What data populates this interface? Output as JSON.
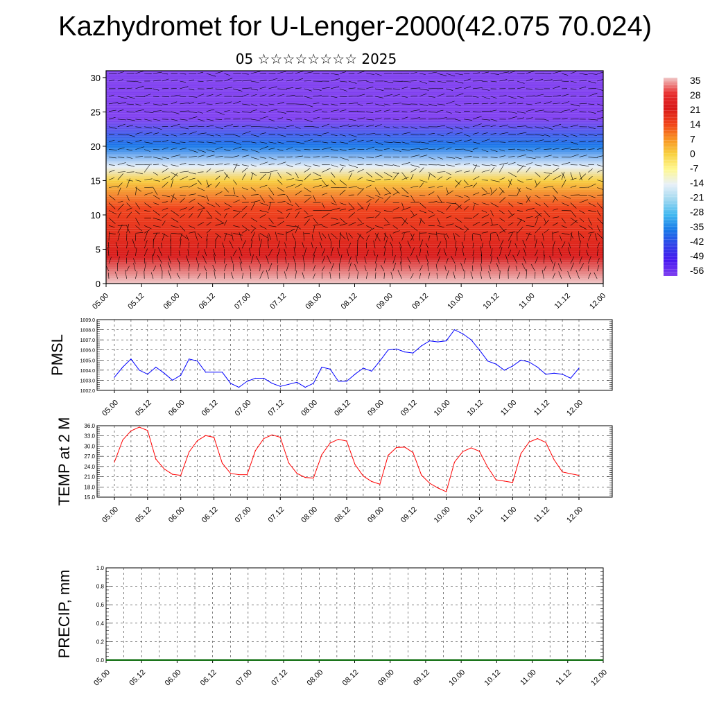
{
  "title": "Kazhydromet for U-Lenger-2000(42.075 70.024)",
  "subtitle": "05 ☆☆☆☆☆☆☆☆ 2025",
  "colors": {
    "pmsl_line": "#0000ff",
    "temp_line": "#ff0000",
    "precip_line": "#006400",
    "grid": "#000000",
    "vectors": "#000000"
  },
  "chart_data": [
    {
      "id": "cross_section",
      "type": "heatmap",
      "description_of_fill": "temperature colour field with black wind vectors",
      "x_tick_labels": [
        "05.00",
        "05.12",
        "06.00",
        "06.12",
        "07.00",
        "07.12",
        "08.00",
        "08.12",
        "09.00",
        "09.12",
        "10.00",
        "10.12",
        "11.00",
        "11.12",
        "12.00"
      ],
      "y_ticks": [
        0,
        5,
        10,
        15,
        20,
        25,
        30
      ],
      "ylim": [
        0,
        31
      ],
      "colorbar": {
        "labels": [
          "35",
          "28",
          "21",
          "14",
          "7",
          "0",
          "-7",
          "-14",
          "-21",
          "-28",
          "-35",
          "-42",
          "-49",
          "-56"
        ],
        "stops": [
          "#f0c8c8",
          "#e83030",
          "#d81818",
          "#f04018",
          "#f89020",
          "#f8d040",
          "#fff890",
          "#e8f0f8",
          "#a0d8f0",
          "#40b8f0",
          "#1878e8",
          "#3040e8",
          "#4818f0",
          "#8040f0"
        ]
      },
      "temp_profile": [
        {
          "level": 0,
          "value": 35
        },
        {
          "level": 4,
          "value": 22
        },
        {
          "level": 11,
          "value": 14
        },
        {
          "level": 15,
          "value": 0
        },
        {
          "level": 17,
          "value": -14
        },
        {
          "level": 20,
          "value": -30
        },
        {
          "level": 24,
          "value": -50
        },
        {
          "level": 31,
          "value": -58
        }
      ]
    },
    {
      "id": "pmsl",
      "type": "line",
      "ylabel": "PMSL",
      "ylim": [
        1002.0,
        1009.0
      ],
      "y_tick_labels": [
        "1009.0",
        "1008.0",
        "1007.0",
        "1006.0",
        "1005.0",
        "1004.0",
        "1003.0",
        "1002.0"
      ],
      "x_tick_labels": [
        "05.00",
        "05.12",
        "06.00",
        "06.12",
        "07.00",
        "07.12",
        "08.00",
        "08.12",
        "09.00",
        "09.12",
        "10.00",
        "10.12",
        "11.00",
        "11.12",
        "12.00"
      ],
      "series": [
        {
          "values": [
            1003.3,
            1004.3,
            1005.1,
            1004.0,
            1003.6,
            1004.3,
            1003.7,
            1003.0,
            1003.5,
            1005.1,
            1004.9,
            1003.8,
            1003.8,
            1003.8,
            1002.7,
            1002.3,
            1002.9,
            1003.2,
            1003.2,
            1002.7,
            1002.4,
            1002.6,
            1002.8,
            1002.3,
            1002.7,
            1004.3,
            1004.1,
            1002.9,
            1002.9,
            1003.6,
            1004.2,
            1003.9,
            1004.9,
            1006.0,
            1006.1,
            1005.8,
            1005.7,
            1006.4,
            1006.9,
            1006.8,
            1006.9,
            1008.0,
            1007.6,
            1007.0,
            1006.0,
            1004.9,
            1004.6,
            1004.0,
            1004.4,
            1005.0,
            1004.8,
            1004.3,
            1003.6,
            1003.7,
            1003.6,
            1003.2,
            1004.2
          ]
        }
      ]
    },
    {
      "id": "temp",
      "type": "line",
      "ylabel": "TEMP at 2 M",
      "ylim": [
        15.0,
        36.0
      ],
      "y_tick_labels": [
        "36.0",
        "33.0",
        "30.0",
        "27.0",
        "24.0",
        "21.0",
        "18.0",
        "15.0"
      ],
      "x_tick_labels": [
        "05.00",
        "05.12",
        "06.00",
        "06.12",
        "07.00",
        "07.12",
        "08.00",
        "08.12",
        "09.00",
        "09.12",
        "10.00",
        "10.12",
        "11.00",
        "11.12",
        "12.00"
      ],
      "series": [
        {
          "values": [
            25.3,
            31.8,
            34.5,
            35.6,
            34.6,
            26.2,
            23.3,
            21.7,
            21.4,
            28.3,
            31.6,
            33.1,
            32.6,
            25.0,
            22.0,
            21.6,
            21.6,
            28.7,
            32.2,
            33.3,
            32.6,
            25.1,
            22.0,
            20.8,
            20.6,
            27.5,
            30.9,
            32.0,
            31.5,
            24.6,
            21.2,
            19.6,
            18.8,
            27.3,
            29.6,
            29.7,
            28.1,
            21.5,
            19.1,
            17.7,
            16.6,
            25.3,
            28.4,
            29.5,
            28.5,
            23.8,
            20.1,
            19.7,
            19.3,
            27.8,
            31.2,
            32.2,
            31.1,
            26.0,
            22.4,
            21.9,
            21.4
          ]
        }
      ]
    },
    {
      "id": "precip",
      "type": "line",
      "ylabel": "PRECIP, mm",
      "ylim": [
        0.0,
        1.0
      ],
      "y_tick_labels": [
        "1.0",
        "0.8",
        "0.6",
        "0.4",
        "0.2",
        "0.0"
      ],
      "x_tick_labels": [
        "05.00",
        "05.12",
        "06.00",
        "06.12",
        "07.00",
        "07.12",
        "08.00",
        "08.12",
        "09.00",
        "09.12",
        "10.00",
        "10.12",
        "11.00",
        "11.12",
        "12.00"
      ],
      "series": [
        {
          "values": [
            0,
            0,
            0,
            0,
            0,
            0,
            0,
            0,
            0,
            0,
            0,
            0,
            0,
            0,
            0,
            0,
            0,
            0,
            0,
            0,
            0,
            0,
            0,
            0,
            0,
            0,
            0,
            0,
            0,
            0,
            0,
            0,
            0,
            0,
            0,
            0,
            0,
            0,
            0,
            0,
            0,
            0,
            0,
            0,
            0,
            0,
            0,
            0,
            0,
            0,
            0,
            0,
            0,
            0,
            0,
            0,
            0
          ]
        }
      ]
    }
  ]
}
